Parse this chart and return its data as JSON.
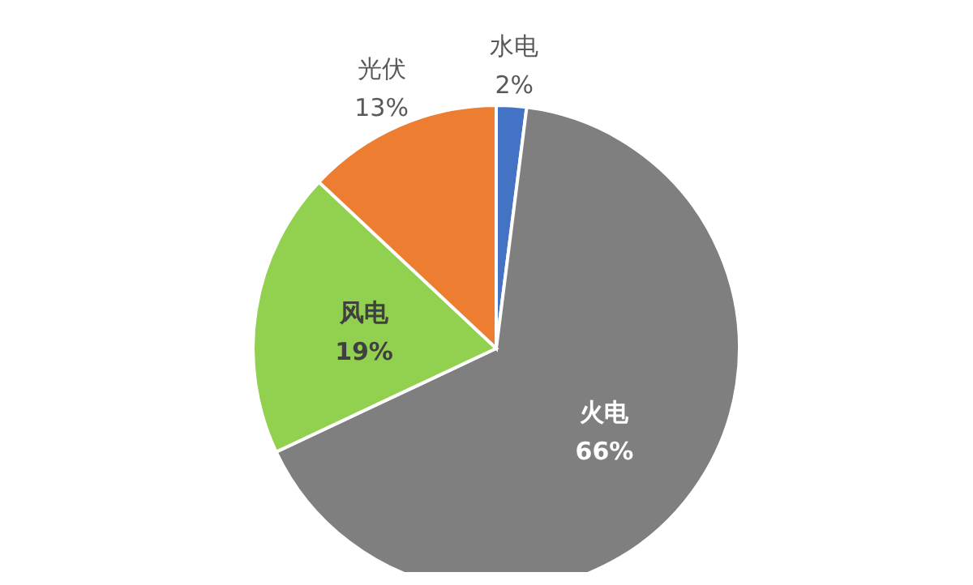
{
  "chart_data": {
    "type": "pie",
    "categories": [
      "水电",
      "火电",
      "风电",
      "光伏"
    ],
    "values": [
      2,
      66,
      19,
      13
    ],
    "value_labels": [
      "2%",
      "66%",
      "19%",
      "13%"
    ],
    "colors": [
      "#4472c4",
      "#7f7f7f",
      "#92d050",
      "#ed7d31"
    ]
  }
}
